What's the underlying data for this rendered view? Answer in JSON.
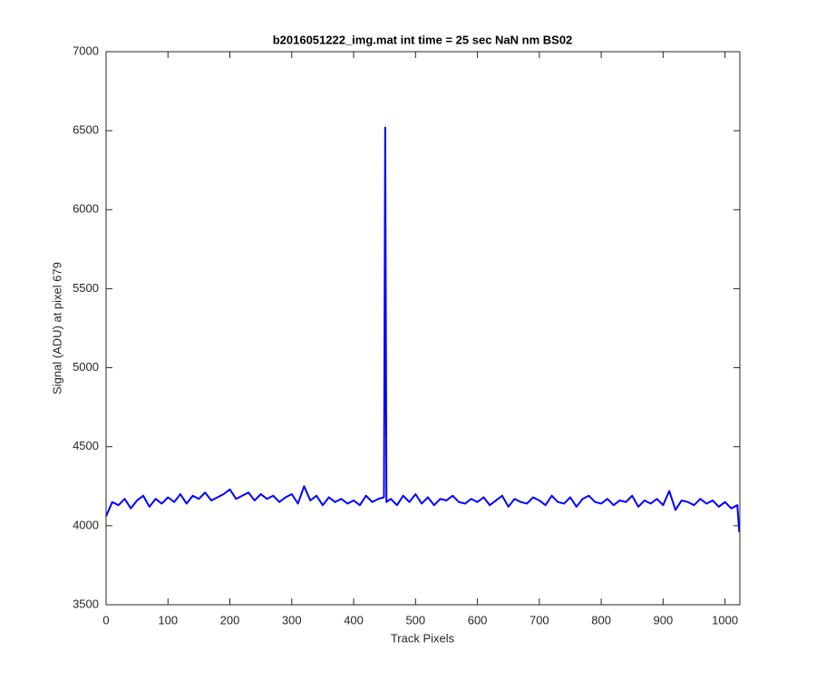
{
  "chart_data": {
    "type": "line",
    "title": "b2016051222_img.mat int time = 25 sec  NaN nm BS02",
    "xlabel": "Track Pixels",
    "ylabel": "Signal (ADU) at pixel 679",
    "x": [
      0,
      10,
      20,
      30,
      40,
      50,
      60,
      70,
      80,
      90,
      100,
      110,
      120,
      130,
      140,
      150,
      160,
      170,
      180,
      190,
      200,
      210,
      220,
      230,
      240,
      250,
      260,
      270,
      280,
      290,
      300,
      310,
      320,
      330,
      340,
      350,
      360,
      370,
      380,
      390,
      400,
      410,
      420,
      430,
      440,
      449,
      451,
      453,
      460,
      470,
      480,
      490,
      500,
      510,
      520,
      530,
      540,
      550,
      560,
      570,
      580,
      590,
      600,
      610,
      620,
      630,
      640,
      650,
      660,
      670,
      680,
      690,
      700,
      710,
      720,
      730,
      740,
      750,
      760,
      770,
      780,
      790,
      800,
      810,
      820,
      830,
      840,
      850,
      860,
      870,
      880,
      890,
      900,
      910,
      920,
      930,
      940,
      950,
      960,
      970,
      980,
      990,
      1000,
      1010,
      1020,
      1023
    ],
    "series": [
      {
        "name": "signal",
        "color": "#0000ff",
        "values": [
          4060,
          4150,
          4130,
          4170,
          4110,
          4160,
          4190,
          4120,
          4170,
          4140,
          4180,
          4150,
          4200,
          4140,
          4190,
          4170,
          4210,
          4160,
          4180,
          4200,
          4230,
          4170,
          4190,
          4210,
          4160,
          4200,
          4170,
          4190,
          4150,
          4180,
          4200,
          4140,
          4250,
          4160,
          4190,
          4130,
          4180,
          4150,
          4170,
          4140,
          4160,
          4130,
          4190,
          4150,
          4170,
          4180,
          6520,
          4150,
          4170,
          4130,
          4190,
          4150,
          4200,
          4140,
          4180,
          4130,
          4170,
          4160,
          4190,
          4150,
          4140,
          4170,
          4150,
          4180,
          4130,
          4160,
          4190,
          4120,
          4170,
          4150,
          4140,
          4180,
          4160,
          4130,
          4190,
          4150,
          4140,
          4180,
          4120,
          4170,
          4190,
          4150,
          4140,
          4170,
          4130,
          4160,
          4150,
          4190,
          4120,
          4160,
          4140,
          4170,
          4130,
          4220,
          4100,
          4160,
          4150,
          4130,
          4170,
          4140,
          4160,
          4120,
          4150,
          4110,
          4130,
          3960
        ]
      }
    ],
    "xlim": [
      0,
      1024
    ],
    "ylim": [
      3500,
      7000
    ],
    "xticks": [
      0,
      100,
      200,
      300,
      400,
      500,
      600,
      700,
      800,
      900,
      1000
    ],
    "yticks": [
      3500,
      4000,
      4500,
      5000,
      5500,
      6000,
      6500,
      7000
    ],
    "grid": false
  }
}
